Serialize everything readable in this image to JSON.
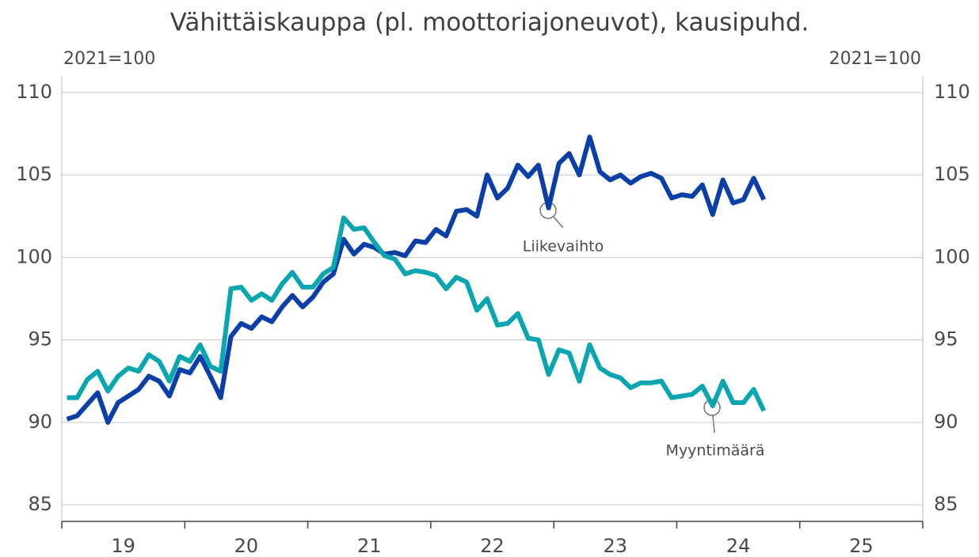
{
  "chart_data": {
    "type": "line",
    "title": "Vähittäiskauppa (pl. moottoriajoneuvot), kausipuhd.",
    "ylabel": "2021=100",
    "y2label": "2021=100",
    "x": [
      19.042,
      19.125,
      19.208,
      19.292,
      19.375,
      19.458,
      19.542,
      19.625,
      19.708,
      19.792,
      19.875,
      19.958,
      20.042,
      20.125,
      20.208,
      20.292,
      20.375,
      20.458,
      20.542,
      20.625,
      20.708,
      20.792,
      20.875,
      20.958,
      21.042,
      21.125,
      21.208,
      21.292,
      21.375,
      21.458,
      21.542,
      21.625,
      21.708,
      21.792,
      21.875,
      21.958,
      22.042,
      22.125,
      22.208,
      22.292,
      22.375,
      22.458,
      22.542,
      22.625,
      22.708,
      22.792,
      22.875,
      22.958,
      23.042,
      23.125,
      23.208,
      23.292,
      23.375,
      23.458,
      23.542,
      23.625,
      23.708,
      23.792,
      23.875,
      23.958,
      24.042,
      24.125,
      24.208,
      24.292,
      24.375,
      24.458,
      24.542,
      24.625,
      24.708
    ],
    "series": [
      {
        "name": "Liikevaihto",
        "color": "#0a3fa8",
        "values": [
          90.2,
          90.4,
          91.1,
          91.8,
          90.0,
          91.2,
          91.6,
          92.0,
          92.8,
          92.5,
          91.6,
          93.2,
          93.0,
          94.0,
          92.8,
          91.5,
          95.2,
          96.0,
          95.7,
          96.4,
          96.1,
          97.0,
          97.7,
          97.0,
          97.6,
          98.5,
          99.0,
          101.1,
          100.2,
          100.8,
          100.6,
          100.2,
          100.3,
          100.1,
          101.0,
          100.9,
          101.7,
          101.3,
          102.8,
          102.9,
          102.5,
          105.0,
          103.6,
          104.2,
          105.6,
          104.9,
          105.6,
          103.0,
          105.7,
          106.3,
          105.0,
          107.3,
          105.2,
          104.7,
          105.0,
          104.5,
          104.9,
          105.1,
          104.8,
          103.6,
          103.8,
          103.7,
          104.4,
          102.6,
          104.7,
          103.3,
          103.5,
          104.8,
          103.5
        ]
      },
      {
        "name": "Myyntimäärä",
        "color": "#0aa6b0",
        "values": [
          91.5,
          91.5,
          92.6,
          93.1,
          91.9,
          92.8,
          93.3,
          93.1,
          94.1,
          93.7,
          92.5,
          94.0,
          93.7,
          94.7,
          93.4,
          93.1,
          98.1,
          98.2,
          97.4,
          97.8,
          97.4,
          98.4,
          99.1,
          98.2,
          98.2,
          99.0,
          99.4,
          102.4,
          101.7,
          101.8,
          100.9,
          100.1,
          99.9,
          99.0,
          99.2,
          99.1,
          98.9,
          98.1,
          98.8,
          98.5,
          96.8,
          97.5,
          95.9,
          96.0,
          96.6,
          95.1,
          95.0,
          92.9,
          94.4,
          94.2,
          92.5,
          94.7,
          93.3,
          92.9,
          92.7,
          92.1,
          92.4,
          92.4,
          92.5,
          91.5,
          91.6,
          91.7,
          92.2,
          91.0,
          92.5,
          91.2,
          91.2,
          92.0,
          90.7
        ]
      }
    ],
    "xlim": [
      19,
      26
    ],
    "xticks": [
      {
        "value": 19.5,
        "label": "19"
      },
      {
        "value": 20.5,
        "label": "20"
      },
      {
        "value": 21.5,
        "label": "21"
      },
      {
        "value": 22.5,
        "label": "22"
      },
      {
        "value": 23.5,
        "label": "23"
      },
      {
        "value": 24.5,
        "label": "24"
      },
      {
        "value": 25.5,
        "label": "25"
      }
    ],
    "xtick_marks": [
      19,
      20,
      21,
      22,
      23,
      24,
      25,
      26
    ],
    "ylim": [
      84,
      111
    ],
    "yticks": [
      85,
      90,
      95,
      100,
      105,
      110
    ],
    "y2lim": [
      84,
      111
    ],
    "y2ticks": [
      85,
      90,
      95,
      100,
      105,
      110
    ],
    "grid": true
  }
}
